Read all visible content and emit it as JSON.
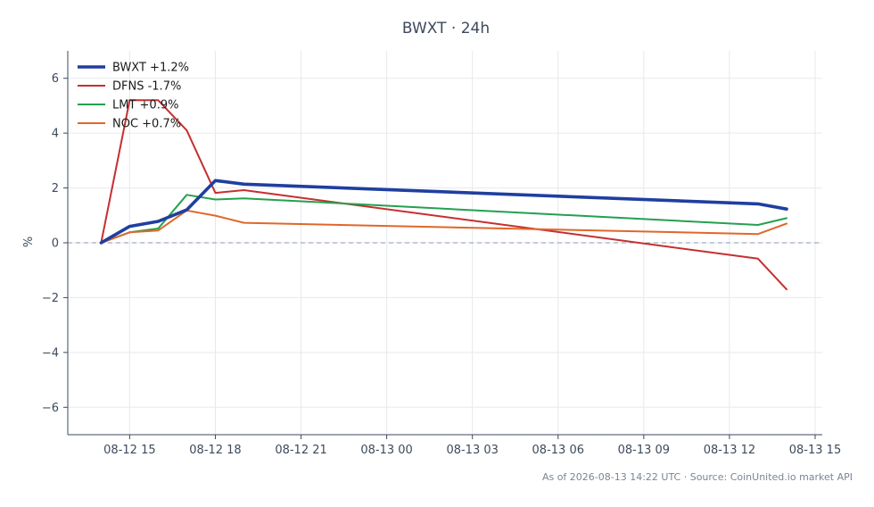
{
  "chart_data": {
    "type": "line",
    "title": "BWXT · 24h",
    "xlabel": "",
    "ylabel": "%",
    "footer": "As of 2026-08-13 14:22 UTC · Source: CoinUnited.io market API",
    "x": [
      "2026-08-12 14:00",
      "2026-08-12 15:00",
      "2026-08-12 16:00",
      "2026-08-12 17:00",
      "2026-08-12 18:00",
      "2026-08-12 19:00",
      "2026-08-13 13:00",
      "2026-08-13 14:00"
    ],
    "x_ticks": [
      "08-12 15",
      "08-12 18",
      "08-12 21",
      "08-13 00",
      "08-13 03",
      "08-13 06",
      "08-13 09",
      "08-13 12",
      "08-13 15"
    ],
    "x_tick_values": [
      "2026-08-12 15:00",
      "2026-08-12 18:00",
      "2026-08-12 21:00",
      "2026-08-13 00:00",
      "2026-08-13 03:00",
      "2026-08-13 06:00",
      "2026-08-13 09:00",
      "2026-08-13 12:00",
      "2026-08-13 15:00"
    ],
    "xlim": [
      "2026-08-12 12:50",
      "2026-08-13 15:15"
    ],
    "y_ticks": [
      6,
      4,
      2,
      0,
      -2,
      -4,
      -6
    ],
    "y_tick_labels": [
      "6",
      "4",
      "2",
      "0",
      "−2",
      "−4",
      "−6"
    ],
    "ylim": [
      -7,
      7
    ],
    "grid": true,
    "zero_line": true,
    "legend_position": "top-left",
    "series": [
      {
        "name": "BWXT +1.2%",
        "color": "#1f3f9f",
        "emphasis": true,
        "values": [
          0.0,
          0.6,
          0.78,
          1.2,
          2.27,
          2.14,
          1.42,
          1.23
        ]
      },
      {
        "name": "DFNS -1.7%",
        "color": "#c62f2f",
        "emphasis": false,
        "values": [
          0.0,
          5.2,
          5.2,
          4.1,
          1.82,
          1.92,
          -0.58,
          -1.7
        ]
      },
      {
        "name": "LMT +0.9%",
        "color": "#24a04f",
        "emphasis": false,
        "values": [
          0.0,
          0.38,
          0.52,
          1.75,
          1.58,
          1.62,
          0.65,
          0.9
        ]
      },
      {
        "name": "NOC +0.7%",
        "color": "#e0672a",
        "emphasis": false,
        "values": [
          0.0,
          0.38,
          0.45,
          1.18,
          0.99,
          0.73,
          0.32,
          0.7
        ]
      }
    ]
  }
}
